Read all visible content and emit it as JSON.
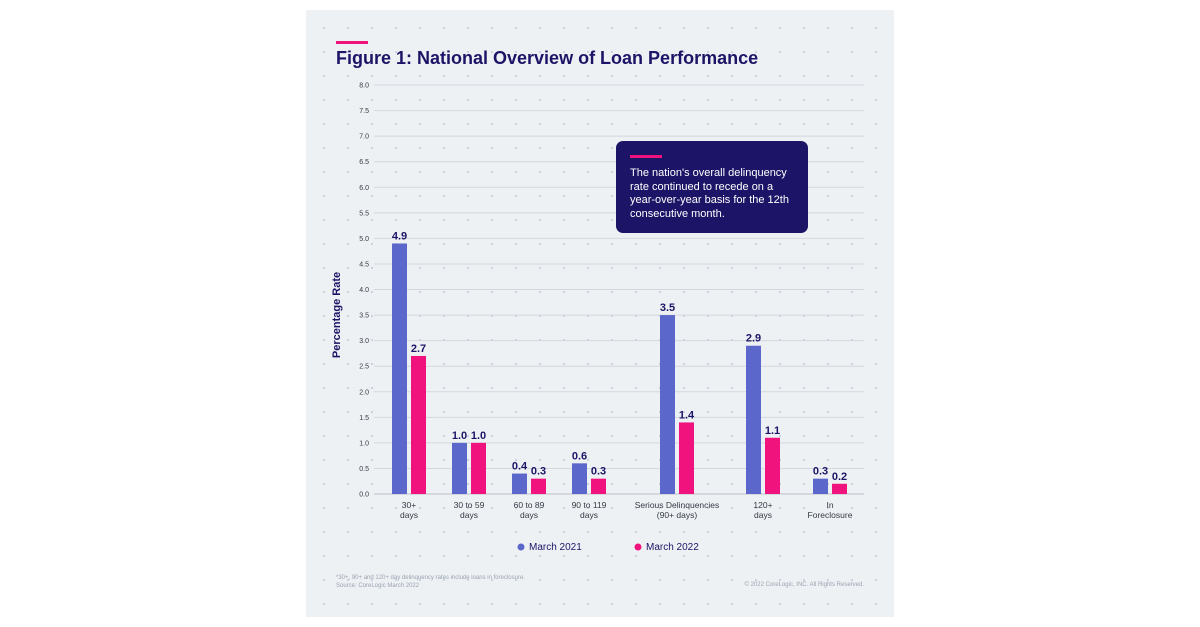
{
  "title": "Figure 1: National Overview of Loan Performance",
  "callout": "The nation's overall delinquency rate continued to recede on a year-over-year basis for the 12th consecutive month.",
  "footnote": "*30+, 90+ and 120+ day delinquency rates include loans in foreclosure.",
  "source": "Source: CoreLogic March 2022",
  "copyright": "© 2022 CoreLogic, INC. All Rights Reserved.",
  "colors": {
    "navy": "#1c1466",
    "series1": "#5c67cc",
    "series2": "#f0127d"
  },
  "chart_data": {
    "type": "bar",
    "title": "Figure 1: National Overview of Loan Performance",
    "ylabel": "Percentage Rate",
    "xlabel": "",
    "ylim": [
      0,
      8
    ],
    "yticks": [
      "0.0",
      "0.5",
      "1.0",
      "1.5",
      "2.0",
      "2.5",
      "3.0",
      "3.5",
      "4.0",
      "4.5",
      "5.0",
      "5.5",
      "6.0",
      "6.5",
      "7.0",
      "7.5",
      "8.0"
    ],
    "grid": true,
    "legend": "bottom",
    "categories": [
      [
        "30+",
        "days"
      ],
      [
        "30 to 59",
        "days"
      ],
      [
        "60 to 89",
        "days"
      ],
      [
        "90 to 119",
        "days"
      ],
      [
        "Serious Delinquencies",
        "(90+ days)"
      ],
      [
        "120+",
        "days"
      ],
      [
        "In",
        "Foreclosure"
      ]
    ],
    "series": [
      {
        "name": "March 2021",
        "color": "#5c67cc",
        "values": [
          4.9,
          1.0,
          0.4,
          0.6,
          3.5,
          2.9,
          0.3
        ],
        "labels": [
          "4.9",
          "1.0",
          "0.4",
          "0.6",
          "3.5",
          "2.9",
          "0.3"
        ]
      },
      {
        "name": "March 2022",
        "color": "#f0127d",
        "values": [
          2.7,
          1.0,
          0.3,
          0.3,
          1.4,
          1.1,
          0.2
        ],
        "labels": [
          "2.7",
          "1.0",
          "0.3",
          "0.3",
          "1.4",
          "1.1",
          "0.2"
        ]
      }
    ]
  }
}
